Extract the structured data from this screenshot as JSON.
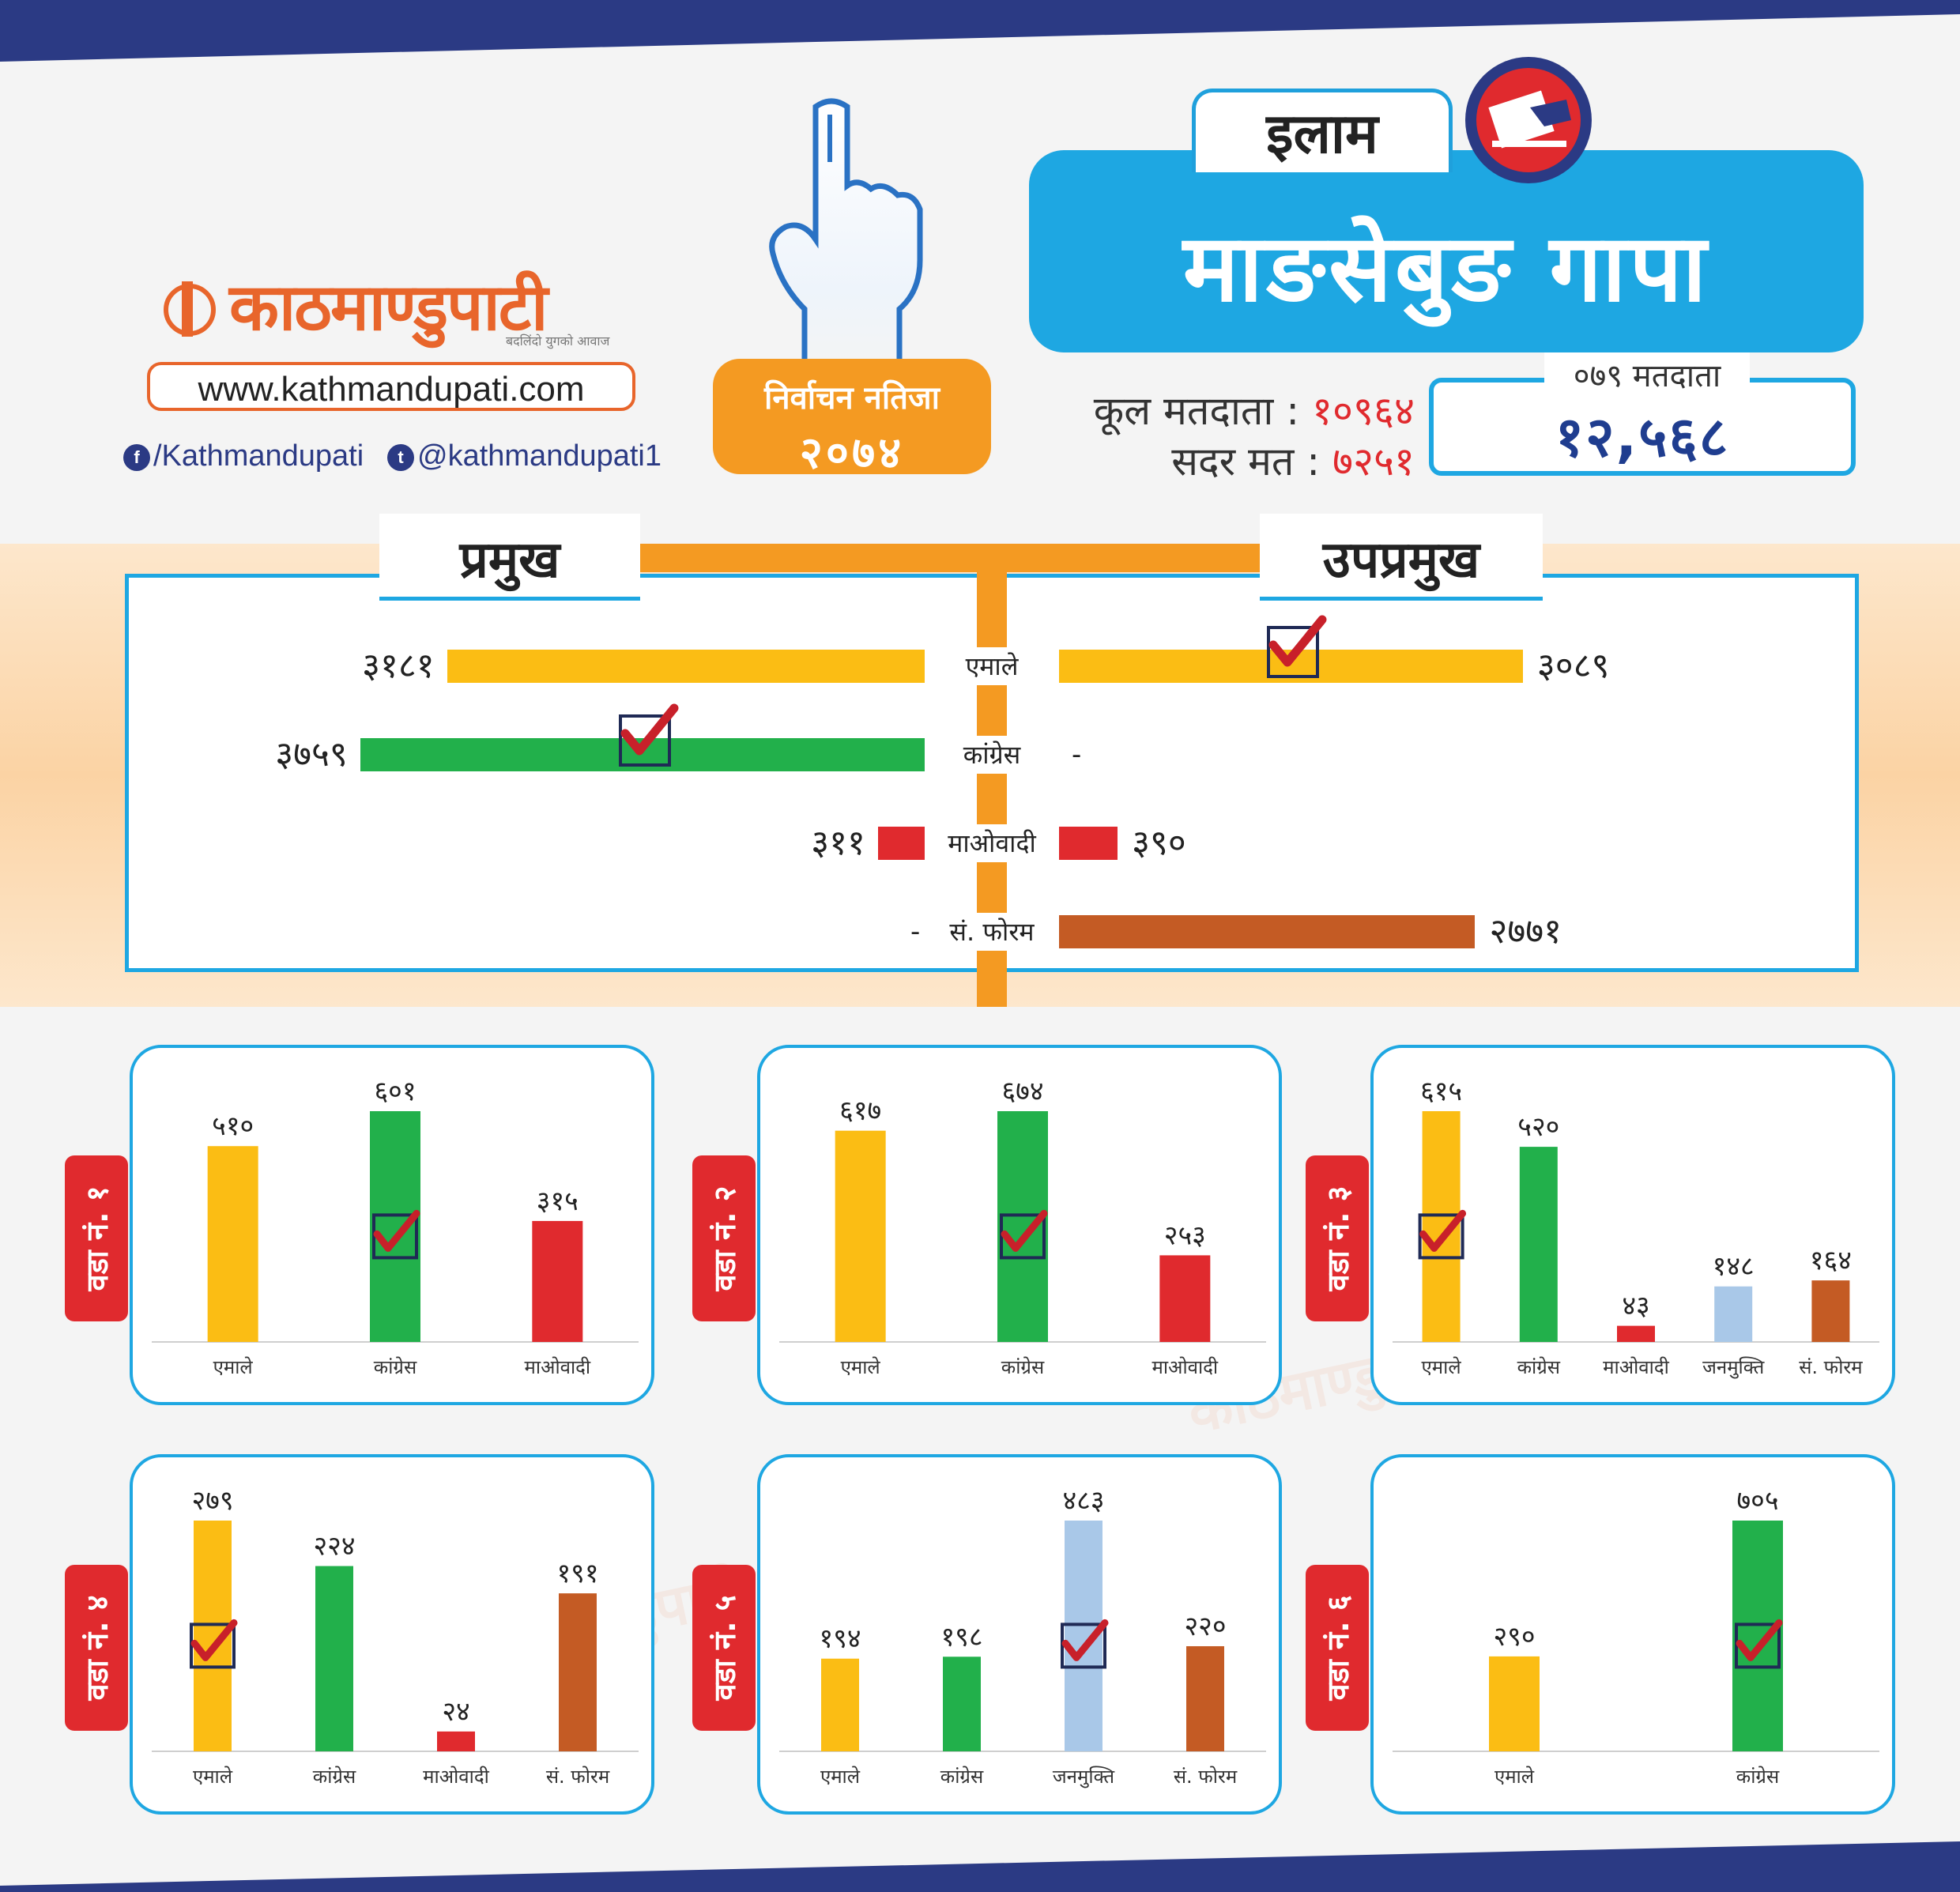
{
  "header": {
    "logo_text": "काठमाण्डुपाटी",
    "logo_tagline": "बदलिंदो युगको आवाज",
    "website": "www.kathmandupati.com",
    "facebook": "/Kathmandupati",
    "twitter": "@kathmandupati1",
    "election_label": "निर्वाचन नतिजा",
    "election_year": "२०७४",
    "district": "इलाम",
    "municipality": "माङसेबुङ गापा",
    "total_voters_label": "कूल मतदाता :",
    "total_voters": "१०९६४",
    "valid_votes_label": "सदर मत :",
    "valid_votes": "७२५१",
    "voters_079_label": "०७९ मतदाता",
    "voters_079": "१२,५६८"
  },
  "colors": {
    "emale": "#fbbd14",
    "congress": "#22b04b",
    "maoist": "#e02a2e",
    "janamukti": "#a9c8e8",
    "forum": "#c45b24",
    "accent_blue": "#1ea7e2",
    "accent_orange": "#f49a22",
    "band_navy": "#2b3a84"
  },
  "chart_data": [
    {
      "type": "bar",
      "orientation": "horizontal",
      "title": "प्रमुख",
      "categories": [
        "एमाले",
        "कांग्रेस",
        "माओवादी",
        "सं. फोरम"
      ],
      "values": [
        3181,
        3759,
        311,
        null
      ],
      "value_labels": [
        "३१८१",
        "३७५९",
        "३११",
        "-"
      ],
      "colors": [
        "#fbbd14",
        "#22b04b",
        "#e02a2e",
        "#c45b24"
      ],
      "winner": "कांग्रेस"
    },
    {
      "type": "bar",
      "orientation": "horizontal",
      "title": "उपप्रमुख",
      "categories": [
        "एमाले",
        "कांग्रेस",
        "माओवादी",
        "सं. फोरम"
      ],
      "values": [
        3089,
        null,
        390,
        2771
      ],
      "value_labels": [
        "३०८९",
        "-",
        "३९०",
        "२७७१"
      ],
      "colors": [
        "#fbbd14",
        "#22b04b",
        "#e02a2e",
        "#c45b24"
      ],
      "winner": "एमाले"
    },
    {
      "type": "bar",
      "title": "वडा नं. १",
      "categories": [
        "एमाले",
        "कांग्रेस",
        "माओवादी"
      ],
      "values": [
        510,
        601,
        315
      ],
      "value_labels": [
        "५१०",
        "६०१",
        "३१५"
      ],
      "colors": [
        "#fbbd14",
        "#22b04b",
        "#e02a2e"
      ],
      "winner": "कांग्रेस"
    },
    {
      "type": "bar",
      "title": "वडा नं. २",
      "categories": [
        "एमाले",
        "कांग्रेस",
        "माओवादी"
      ],
      "values": [
        617,
        674,
        253
      ],
      "value_labels": [
        "६१७",
        "६७४",
        "२५३"
      ],
      "colors": [
        "#fbbd14",
        "#22b04b",
        "#e02a2e"
      ],
      "winner": "कांग्रेस"
    },
    {
      "type": "bar",
      "title": "वडा नं. ३",
      "categories": [
        "एमाले",
        "कांग्रेस",
        "माओवादी",
        "जनमुक्ति",
        "सं. फोरम"
      ],
      "values": [
        615,
        520,
        43,
        148,
        164
      ],
      "value_labels": [
        "६१५",
        "५२०",
        "४३",
        "१४८",
        "१६४"
      ],
      "colors": [
        "#fbbd14",
        "#22b04b",
        "#e02a2e",
        "#a9c8e8",
        "#c45b24"
      ],
      "winner": "एमाले"
    },
    {
      "type": "bar",
      "title": "वडा नं. ४",
      "categories": [
        "एमाले",
        "कांग्रेस",
        "माओवादी",
        "सं. फोरम"
      ],
      "values": [
        279,
        224,
        24,
        191
      ],
      "value_labels": [
        "२७९",
        "२२४",
        "२४",
        "१९१"
      ],
      "colors": [
        "#fbbd14",
        "#22b04b",
        "#e02a2e",
        "#c45b24"
      ],
      "winner": "एमाले"
    },
    {
      "type": "bar",
      "title": "वडा नं. ५",
      "categories": [
        "एमाले",
        "कांग्रेस",
        "जनमुक्ति",
        "सं. फोरम"
      ],
      "values": [
        194,
        198,
        483,
        220
      ],
      "value_labels": [
        "१९४",
        "१९८",
        "४८३",
        "२२०"
      ],
      "colors": [
        "#fbbd14",
        "#22b04b",
        "#a9c8e8",
        "#c45b24"
      ],
      "winner": "जनमुक्ति"
    },
    {
      "type": "bar",
      "title": "वडा नं. ६",
      "categories": [
        "एमाले",
        "कांग्रेस"
      ],
      "values": [
        290,
        705
      ],
      "value_labels": [
        "२९०",
        "७०५"
      ],
      "colors": [
        "#fbbd14",
        "#22b04b"
      ],
      "winner": "कांग्रेस"
    }
  ]
}
